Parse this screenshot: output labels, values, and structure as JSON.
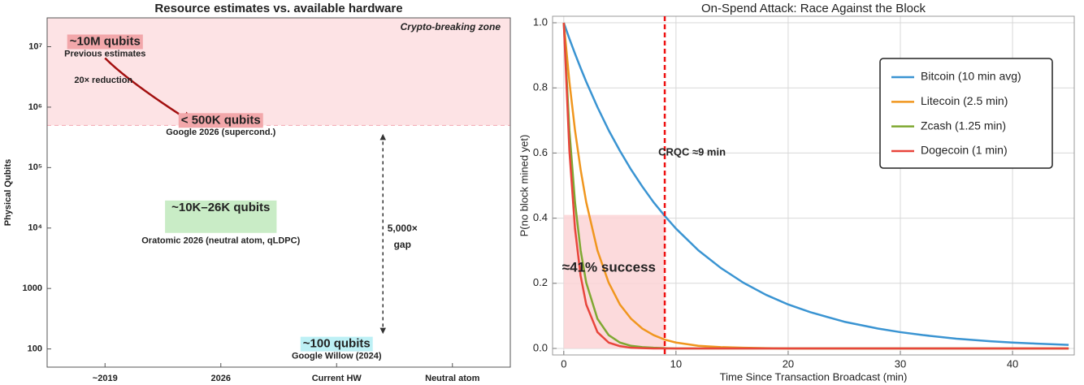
{
  "chart_data": [
    {
      "type": "annotated-log",
      "title": "Resource estimates vs. available hardware",
      "ylabel": "Physical Qubits",
      "categories": [
        "~2019",
        "2026",
        "Current HW",
        "Neutral atom"
      ],
      "log": true,
      "ylim": [
        50,
        30000000
      ],
      "yticks": [
        100,
        1000,
        {
          "value": 10000,
          "label": "10⁴"
        },
        {
          "value": 100000,
          "label": "10⁵"
        },
        {
          "value": 1000000,
          "label": "10⁶"
        },
        {
          "value": 10000000,
          "label": "10⁷"
        }
      ],
      "zone": {
        "label": "Crypto-breaking zone",
        "from": 500000,
        "color": "#fde3e5",
        "line_color": "#f4a6b0"
      },
      "estimates": [
        {
          "label": "~10M qubits",
          "note": "Previous estimates",
          "value": 10000000,
          "category": "~2019",
          "color": "#f2a7aa",
          "text_color": "#111111"
        },
        {
          "label": "< 500K qubits",
          "note": "Google 2026 (supercond.)",
          "value": 500000,
          "category": "2026",
          "color": "#f2a7aa",
          "text_color": "#111111"
        },
        {
          "label": "~10K–26K qubits",
          "note": "Oratomic 2026 (neutral atom, qLDPC)",
          "range": [
            10000,
            26000
          ],
          "category": "2026",
          "color": "#c9ecc6",
          "text_color": "#22aa22"
        },
        {
          "label": "~100 qubits",
          "note": "Google Willow (2024)",
          "value": 100,
          "category": "Current HW",
          "color": "#bdf0f5",
          "text_color": "#111111"
        }
      ],
      "reduction": {
        "label": "20× reduction",
        "from": 10000000,
        "to": 500000,
        "color": "#a30f0f"
      },
      "gap": {
        "label": [
          "5,000×",
          "gap"
        ],
        "from": 500000,
        "to": 100
      }
    },
    {
      "type": "line",
      "title": "On-Spend Attack: Race Against the Block",
      "xlabel": "Time Since Transaction Broadcast (min)",
      "ylabel": "P(no block mined yet)",
      "x": [
        0,
        0.5,
        1,
        1.5,
        2,
        3,
        4,
        5,
        6,
        7,
        8,
        9,
        10,
        12,
        14,
        16,
        18,
        20,
        22,
        25,
        28,
        30,
        32,
        35,
        38,
        40,
        42,
        45
      ],
      "series": [
        {
          "name": "Bitcoin (10 min avg)",
          "color": "#3a94d2",
          "values": [
            1,
            0.951,
            0.905,
            0.861,
            0.819,
            0.741,
            0.67,
            0.607,
            0.549,
            0.497,
            0.449,
            0.407,
            0.368,
            0.301,
            0.247,
            0.202,
            0.165,
            0.135,
            0.111,
            0.082,
            0.061,
            0.05,
            0.041,
            0.03,
            0.022,
            0.018,
            0.015,
            0.011
          ]
        },
        {
          "name": "Litecoin (2.5 min)",
          "color": "#f0961e",
          "values": [
            1,
            0.819,
            0.67,
            0.549,
            0.449,
            0.301,
            0.202,
            0.135,
            0.091,
            0.061,
            0.041,
            0.027,
            0.018,
            0.008,
            0.004,
            0.002,
            0.001,
            0,
            0,
            0,
            0,
            0,
            0,
            0,
            0,
            0,
            0,
            0
          ]
        },
        {
          "name": "Zcash (1.25 min)",
          "color": "#7fa832",
          "values": [
            1,
            0.67,
            0.449,
            0.301,
            0.202,
            0.091,
            0.041,
            0.018,
            0.008,
            0.004,
            0.002,
            0.001,
            0,
            0,
            0,
            0,
            0,
            0,
            0,
            0,
            0,
            0,
            0,
            0,
            0,
            0,
            0,
            0
          ]
        },
        {
          "name": "Dogecoin (1 min)",
          "color": "#e8453c",
          "values": [
            1,
            0.607,
            0.368,
            0.223,
            0.135,
            0.05,
            0.018,
            0.007,
            0.002,
            0.001,
            0,
            0,
            0,
            0,
            0,
            0,
            0,
            0,
            0,
            0,
            0,
            0,
            0,
            0,
            0,
            0,
            0,
            0
          ]
        }
      ],
      "xlim": [
        -1,
        45.5
      ],
      "ylim": [
        -0.02,
        1.02
      ],
      "xticks": [
        0,
        10,
        20,
        30,
        40
      ],
      "yticks": [
        {
          "value": 0,
          "label": "0.0"
        },
        0.2,
        0.4,
        0.6,
        0.8,
        {
          "value": 1,
          "label": "1.0"
        }
      ],
      "grid": true,
      "legend": "upper right",
      "threshold": {
        "label": "CRQC ≈9 min",
        "x": 9,
        "color": "#ee1111"
      },
      "shade": {
        "label": "≈41% success",
        "x": [
          0,
          9
        ],
        "y": [
          0,
          0.41
        ],
        "color": "#fbd3d6"
      }
    }
  ]
}
